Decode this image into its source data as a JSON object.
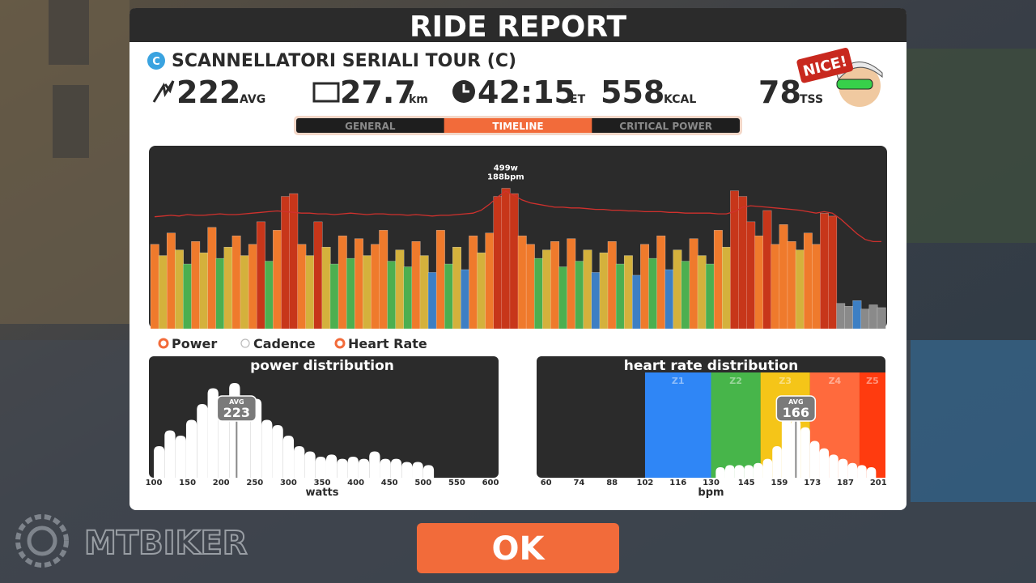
{
  "header": {
    "title": "RIDE REPORT"
  },
  "ride": {
    "category": "C",
    "name": "SCANNELLATORI SERIALI TOUR (C)",
    "badge": "NICE!"
  },
  "stats": [
    {
      "value": 222,
      "unit": "AVG"
    },
    {
      "value": 27.7,
      "unit": "km"
    },
    {
      "value": "42:15",
      "unit": "ET"
    },
    {
      "value": 558,
      "unit": "KCAL"
    },
    {
      "value": 78,
      "unit": "TSS"
    }
  ],
  "tabs": {
    "items": [
      "GENERAL",
      "TIMELINE",
      "CRITICAL POWER"
    ],
    "active": 1
  },
  "chart_data": [
    {
      "type": "timeline",
      "ylim": [
        0,
        650
      ],
      "y2lim": [
        0,
        250
      ],
      "peak_label": [
        "499w",
        "188bpm"
      ],
      "power_zones": [
        {
          "min": 0,
          "color": "#8a8a8a"
        },
        {
          "min": 100,
          "color": "#3d7fc4"
        },
        {
          "min": 220,
          "color": "#4caf50"
        },
        {
          "min": 260,
          "color": "#d4b13c"
        },
        {
          "min": 300,
          "color": "#ef7a2c"
        },
        {
          "min": 380,
          "color": "#c7361a"
        }
      ],
      "series": [
        {
          "name": "Power",
          "shown": true,
          "color": "#ef7a2c",
          "values": [
            300,
            260,
            340,
            280,
            230,
            310,
            270,
            360,
            250,
            290,
            330,
            260,
            300,
            380,
            240,
            350,
            470,
            480,
            300,
            260,
            380,
            290,
            230,
            330,
            250,
            320,
            260,
            300,
            350,
            240,
            280,
            220,
            310,
            260,
            200,
            350,
            230,
            290,
            210,
            330,
            270,
            340,
            470,
            499,
            480,
            330,
            300,
            250,
            280,
            310,
            220,
            320,
            240,
            280,
            200,
            270,
            310,
            230,
            260,
            190,
            300,
            250,
            330,
            210,
            280,
            240,
            320,
            260,
            230,
            350,
            290,
            490,
            470,
            380,
            330,
            420,
            300,
            370,
            310,
            280,
            340,
            300,
            410,
            400,
            90,
            80,
            100,
            70,
            85,
            75
          ]
        },
        {
          "name": "Cadence",
          "shown": false
        },
        {
          "name": "Heart Rate",
          "shown": true,
          "axis": "y2",
          "color": "#d0312d",
          "values": [
            153,
            154,
            155,
            154,
            156,
            155,
            155,
            156,
            157,
            156,
            156,
            157,
            158,
            159,
            160,
            161,
            160,
            159,
            158,
            158,
            157,
            157,
            156,
            157,
            158,
            157,
            156,
            157,
            157,
            156,
            156,
            155,
            156,
            155,
            154,
            155,
            155,
            156,
            157,
            158,
            162,
            170,
            180,
            188,
            182,
            176,
            172,
            170,
            168,
            166,
            166,
            165,
            165,
            164,
            163,
            163,
            162,
            162,
            161,
            161,
            160,
            160,
            160,
            159,
            159,
            158,
            158,
            158,
            158,
            157,
            157,
            160,
            166,
            168,
            167,
            166,
            165,
            164,
            163,
            162,
            160,
            158,
            160,
            158,
            150,
            140,
            130,
            122,
            119,
            119
          ]
        }
      ]
    },
    {
      "type": "histogram",
      "title": "power distribution",
      "x_label": "watts",
      "xlim": [
        100,
        600
      ],
      "ylim": [
        0,
        100
      ],
      "xticks": [
        100,
        150,
        200,
        250,
        300,
        350,
        400,
        450,
        500,
        550,
        600
      ],
      "bins": [
        100,
        116,
        132,
        148,
        164,
        180,
        196,
        212,
        228,
        244,
        260,
        276,
        292,
        308,
        324,
        340,
        356,
        372,
        388,
        404,
        420,
        436,
        452,
        468,
        484,
        500,
        516
      ],
      "values": [
        30,
        45,
        40,
        55,
        70,
        85,
        73,
        90,
        78,
        75,
        55,
        50,
        40,
        30,
        25,
        20,
        22,
        18,
        20,
        18,
        25,
        18,
        18,
        15,
        15,
        12
      ],
      "color": "#ffffff",
      "avg": {
        "label": "AVG",
        "value": 223
      }
    },
    {
      "type": "histogram",
      "title": "heart rate distribution",
      "x_label": "bpm",
      "xlim": [
        56,
        204
      ],
      "ylim": [
        0,
        100
      ],
      "xticks": [
        60,
        74,
        88,
        102,
        116,
        130,
        145,
        159,
        173,
        187,
        201
      ],
      "zones": [
        {
          "name": "Z1",
          "from": 102,
          "to": 130,
          "color": "#2f86f6"
        },
        {
          "name": "Z2",
          "from": 130,
          "to": 151,
          "color": "#47b54a"
        },
        {
          "name": "Z3",
          "from": 151,
          "to": 172,
          "color": "#f5c518"
        },
        {
          "name": "Z4",
          "from": 172,
          "to": 193,
          "color": "#ff6a3d"
        },
        {
          "name": "Z5",
          "from": 193,
          "to": 204,
          "color": "#ff3b0f"
        }
      ],
      "bins": [
        132,
        136,
        140,
        144,
        148,
        152,
        156,
        160,
        164,
        168,
        172,
        176,
        180,
        184,
        188,
        192,
        196,
        200
      ],
      "values": [
        10,
        12,
        12,
        12,
        14,
        18,
        30,
        60,
        55,
        48,
        35,
        28,
        22,
        18,
        14,
        12,
        10
      ],
      "color": "#ffffff",
      "avg": {
        "label": "AVG",
        "value": 166
      }
    }
  ],
  "button": {
    "label": "OK"
  },
  "watermark": "MTBIKER"
}
